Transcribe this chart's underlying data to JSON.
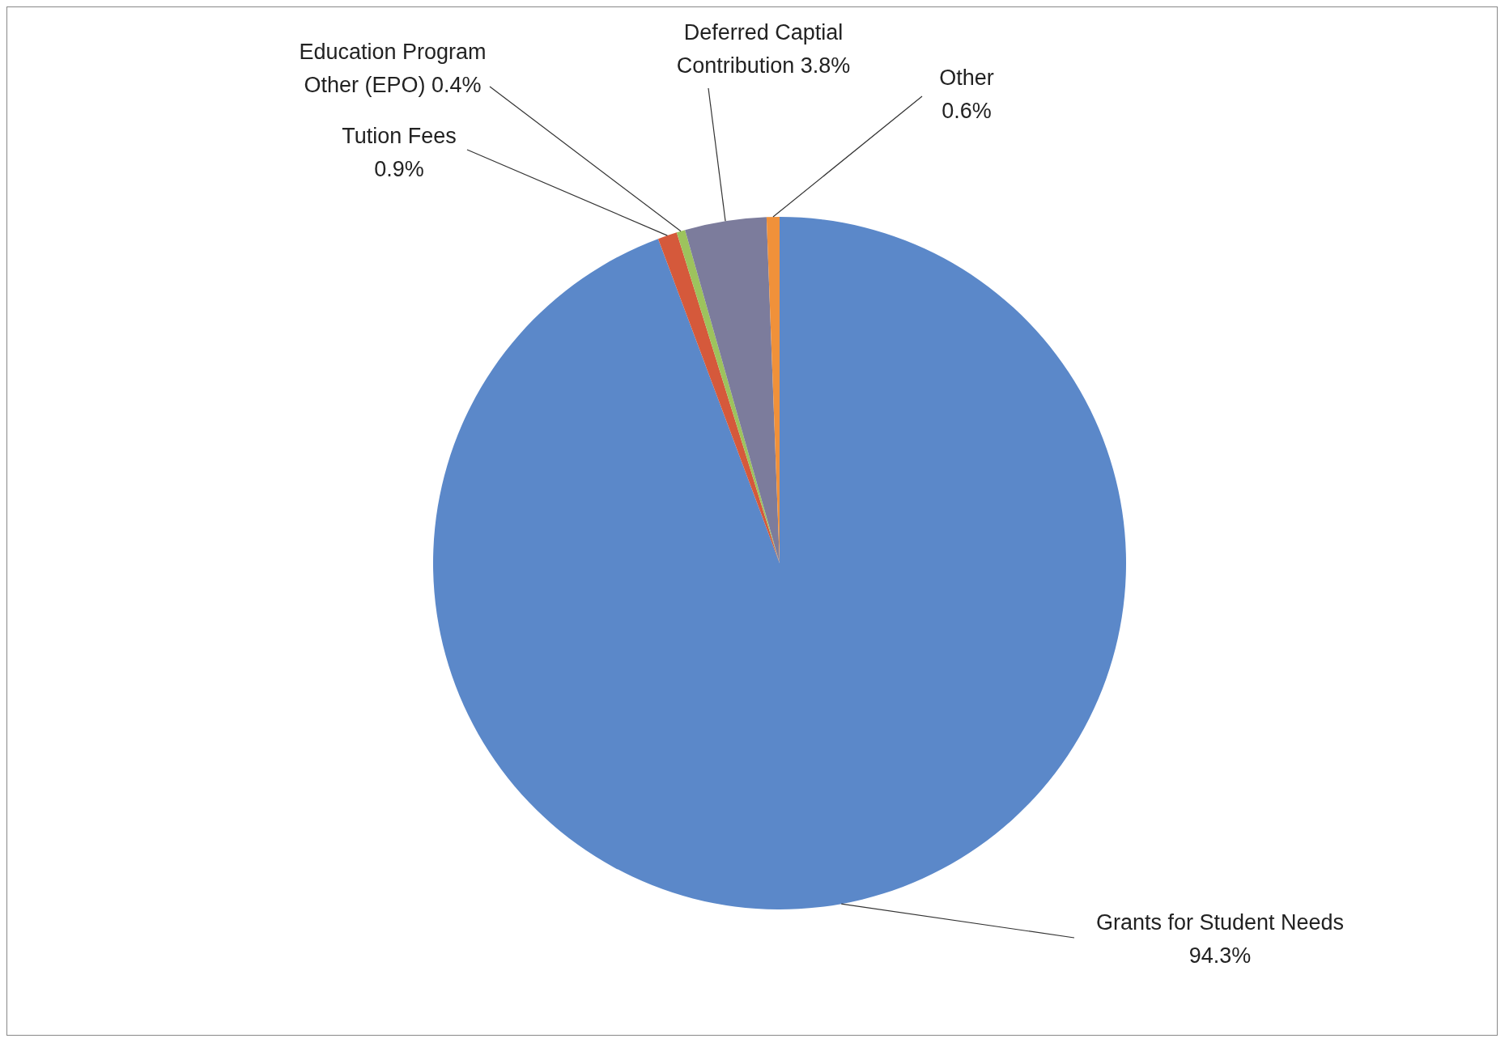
{
  "chart_data": {
    "type": "pie",
    "categories": [
      "Grants for Student Needs",
      "Tution Fees",
      "Education Program Other (EPO)",
      "Deferred Captial Contribution",
      "Other"
    ],
    "values": [
      94.3,
      0.9,
      0.4,
      3.8,
      0.6
    ],
    "value_labels": [
      "94.3%",
      "0.9%",
      "0.4%",
      "3.8%",
      "0.6%"
    ],
    "colors": [
      "#5b88c9",
      "#d5593b",
      "#9dc35d",
      "#7c7c9c",
      "#f0913a"
    ],
    "legend": false
  }
}
